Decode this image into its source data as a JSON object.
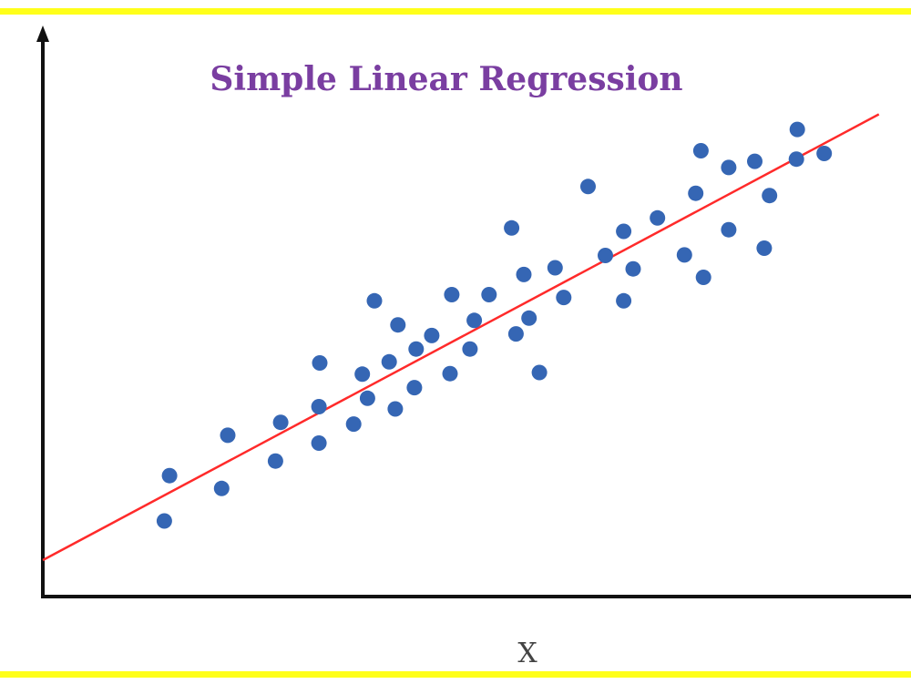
{
  "colors": {
    "border": "#ffff1a",
    "background": "#ffffff",
    "axis": "#111111",
    "points": "#3566b4",
    "regression_line": "#ff2a2a",
    "title": "#7a3ea1"
  },
  "chart_data": {
    "type": "scatter",
    "title": "Simple Linear Regression",
    "xlabel": "X",
    "ylabel": "",
    "xlim": [
      0,
      100
    ],
    "ylim": [
      0,
      100
    ],
    "grid": false,
    "axis_ticks": "none",
    "series": [
      {
        "points": [
          [
            14.0,
            13.5
          ],
          [
            14.6,
            21.6
          ],
          [
            20.6,
            19.3
          ],
          [
            21.3,
            28.8
          ],
          [
            26.8,
            24.2
          ],
          [
            27.4,
            31.1
          ],
          [
            31.8,
            27.4
          ],
          [
            31.8,
            33.9
          ],
          [
            31.9,
            41.7
          ],
          [
            35.8,
            30.8
          ],
          [
            36.8,
            39.7
          ],
          [
            37.4,
            35.4
          ],
          [
            38.2,
            52.8
          ],
          [
            39.9,
            41.9
          ],
          [
            40.6,
            33.5
          ],
          [
            40.9,
            48.5
          ],
          [
            42.8,
            37.3
          ],
          [
            43.0,
            44.2
          ],
          [
            44.8,
            46.6
          ],
          [
            46.9,
            39.8
          ],
          [
            47.1,
            53.9
          ],
          [
            49.2,
            44.2
          ],
          [
            49.7,
            49.3
          ],
          [
            51.4,
            53.9
          ],
          [
            54.0,
            65.8
          ],
          [
            54.5,
            46.9
          ],
          [
            55.4,
            57.5
          ],
          [
            56.0,
            49.7
          ],
          [
            57.2,
            40.0
          ],
          [
            59.0,
            58.7
          ],
          [
            60.0,
            53.4
          ],
          [
            62.8,
            73.2
          ],
          [
            64.8,
            60.9
          ],
          [
            66.9,
            65.2
          ],
          [
            66.9,
            52.8
          ],
          [
            68.0,
            58.5
          ],
          [
            70.8,
            67.6
          ],
          [
            73.9,
            61.0
          ],
          [
            75.2,
            72.0
          ],
          [
            75.8,
            79.6
          ],
          [
            76.1,
            57.0
          ],
          [
            79.0,
            65.5
          ],
          [
            79.0,
            76.6
          ],
          [
            82.0,
            77.7
          ],
          [
            83.1,
            62.2
          ],
          [
            83.7,
            71.6
          ],
          [
            86.8,
            78.1
          ],
          [
            86.9,
            83.4
          ],
          [
            90.0,
            79.1
          ]
        ]
      }
    ],
    "regression_line": {
      "x": [
        0,
        96.3
      ],
      "y": [
        6.5,
        86.1
      ]
    }
  }
}
